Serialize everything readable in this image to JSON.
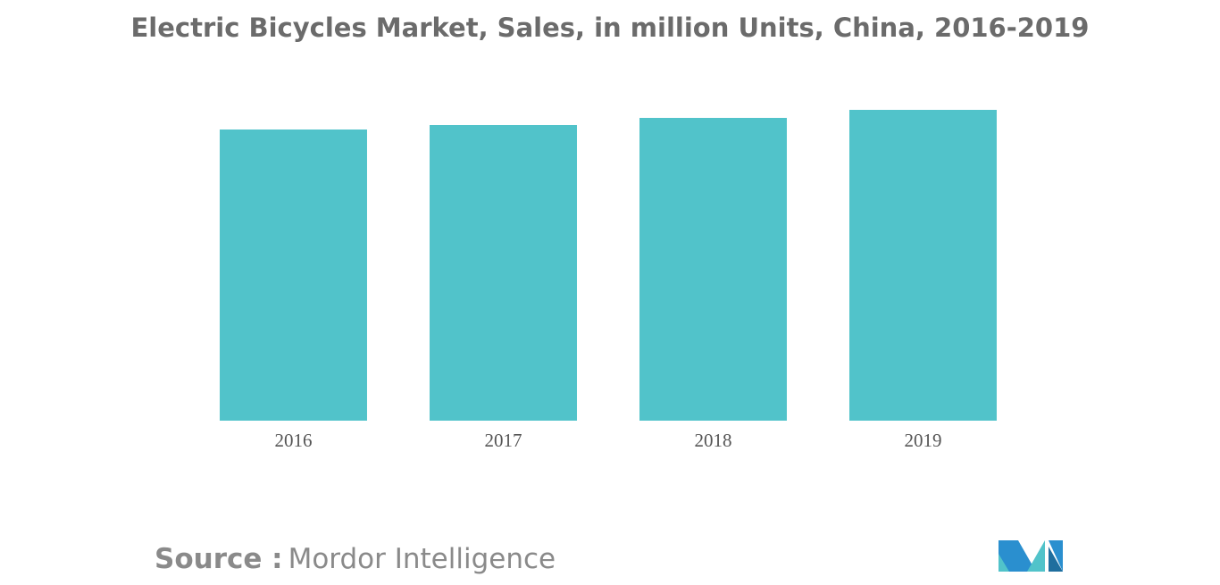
{
  "chart_data": {
    "type": "bar",
    "title": "Electric Bicycles Market, Sales, in million Units, China, 2016-2019",
    "categories": [
      "2016",
      "2017",
      "2018",
      "2019"
    ],
    "values": [
      32.6,
      33.1,
      33.9,
      34.8
    ],
    "color": "#51c3ca",
    "ylim": [
      0,
      35
    ],
    "grid": false
  },
  "source": {
    "label": "Source :",
    "text": "Mordor Intelligence"
  }
}
